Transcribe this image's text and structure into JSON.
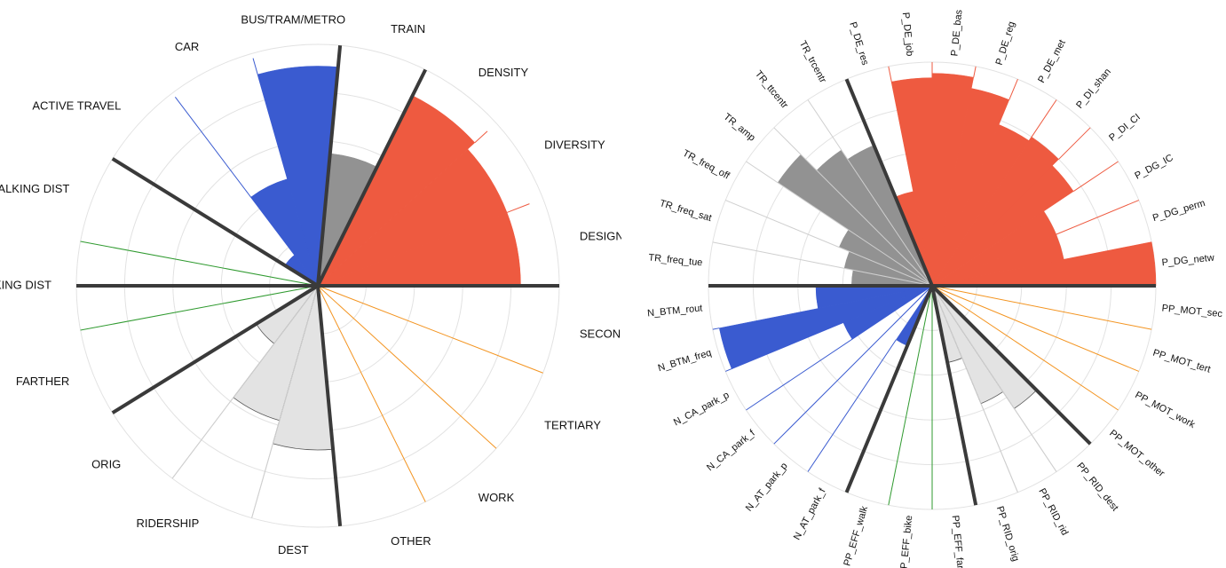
{
  "colors": {
    "background": "#ffffff",
    "grid": "#e2e2e2",
    "separator": "#3a3a3a",
    "blue": "#3a5bd0",
    "gray": "#929292",
    "red": "#ee5a40",
    "green": "#2f9a2f",
    "orange": "#f39420",
    "lightgray": "#e3e3e3",
    "outline": "#555555"
  },
  "chart_data": [
    {
      "type": "polar-bar",
      "rmax": 1,
      "grid": [
        0.2,
        0.4,
        0.6,
        0.8,
        1.0
      ],
      "center_label": "",
      "sectors": [
        {
          "label": "DESIGN",
          "group": "red",
          "value": 0.84,
          "ref": 0.84
        },
        {
          "label": "DIVERSITY",
          "group": "red",
          "value": 0.84,
          "ref": 0.94
        },
        {
          "label": "DENSITY",
          "group": "red",
          "value": 0.88,
          "ref": 0.95
        },
        {
          "label": "TRAIN",
          "group": "gray",
          "value": 0.55,
          "ref": 0.6
        },
        {
          "label": "BUS/TRAM/METRO",
          "group": "blue",
          "value": 0.91,
          "ref": 0.91
        },
        {
          "label": "CAR",
          "group": "blue",
          "value": 0.46,
          "ref": 0.98
        },
        {
          "label": "ACTIVE TRAVEL",
          "group": "blue",
          "value": 0.16,
          "ref": 0.98
        },
        {
          "label": "WALKING DIST",
          "group": "green",
          "value": 0,
          "ref": 1.0
        },
        {
          "label": "BIKING DIST",
          "group": "green",
          "value": 0,
          "ref": 1.0
        },
        {
          "label": "FARTHER",
          "group": "green",
          "value": 0,
          "ref": 1.0
        },
        {
          "label": "ORIG",
          "group": "lightgray",
          "value": 0.3,
          "ref": 1.0
        },
        {
          "label": "RIDERSHIP",
          "group": "lightgray",
          "value": 0.58,
          "ref": 1.0
        },
        {
          "label": "DEST",
          "group": "lightgray",
          "value": 0.68,
          "ref": 1.0
        },
        {
          "label": "OTHER",
          "group": "orange",
          "value": 0,
          "ref": 1.0
        },
        {
          "label": "WORK",
          "group": "orange",
          "value": 0,
          "ref": 1.0
        },
        {
          "label": "TERTIARY",
          "group": "orange",
          "value": 0,
          "ref": 1.0
        },
        {
          "label": "SECONDARY",
          "group": "orange",
          "value": 0,
          "ref": 1.0
        }
      ],
      "separators_after": [
        2,
        3,
        6,
        9,
        12
      ]
    },
    {
      "type": "polar-bar",
      "rmax": 1,
      "grid": [
        0.2,
        0.4,
        0.6,
        0.8,
        1.0
      ],
      "sectors": [
        {
          "label": "P_DG_netw",
          "group": "red",
          "value": 1.0,
          "ref": 1.0
        },
        {
          "label": "P_DG_perm",
          "group": "red",
          "value": 0.6,
          "ref": 1.0
        },
        {
          "label": "P_DG_IC",
          "group": "red",
          "value": 0.6,
          "ref": 1.0
        },
        {
          "label": "P_DI_CI",
          "group": "red",
          "value": 0.76,
          "ref": 1.0
        },
        {
          "label": "P_DI_shan",
          "group": "red",
          "value": 0.8,
          "ref": 1.0
        },
        {
          "label": "P_DE_met",
          "group": "red",
          "value": 0.78,
          "ref": 1.0
        },
        {
          "label": "P_DE_reg",
          "group": "red",
          "value": 0.9,
          "ref": 1.0
        },
        {
          "label": "P_DE_bas",
          "group": "red",
          "value": 0.95,
          "ref": 1.0
        },
        {
          "label": "P_DE_job",
          "group": "red",
          "value": 0.93,
          "ref": 1.0
        },
        {
          "label": "P_DE_res",
          "group": "red",
          "value": 0.43,
          "ref": 1.0
        },
        {
          "label": "TR_trcentr",
          "group": "gray",
          "value": 0.68,
          "ref": 1.0
        },
        {
          "label": "TR_ttcentr",
          "group": "gray",
          "value": 0.73,
          "ref": 1.0
        },
        {
          "label": "TR_amp",
          "group": "gray",
          "value": 0.83,
          "ref": 1.0
        },
        {
          "label": "TR_freq_off",
          "group": "gray",
          "value": 0.45,
          "ref": 1.0
        },
        {
          "label": "TR_freq_sat",
          "group": "gray",
          "value": 0.4,
          "ref": 1.0
        },
        {
          "label": "TR_freq_tue",
          "group": "gray",
          "value": 0.36,
          "ref": 1.0
        },
        {
          "label": "N_BTM_rout",
          "group": "blue",
          "value": 0.52,
          "ref": 1.0
        },
        {
          "label": "N_BTM_freq",
          "group": "blue",
          "value": 0.97,
          "ref": 1.0
        },
        {
          "label": "N_CA_park_p",
          "group": "blue",
          "value": 0.43,
          "ref": 1.0
        },
        {
          "label": "N_CA_park_f",
          "group": "blue",
          "value": 0,
          "ref": 1.0
        },
        {
          "label": "N_AT_park_p",
          "group": "blue",
          "value": 0,
          "ref": 1.0
        },
        {
          "label": "N_AT_park_f",
          "group": "blue",
          "value": 0.29,
          "ref": 1.0
        },
        {
          "label": "PP_EFF_walk",
          "group": "green",
          "value": 0,
          "ref": 1.0
        },
        {
          "label": "PP_EFF_bike",
          "group": "green",
          "value": 0,
          "ref": 1.0
        },
        {
          "label": "PP_EFF_far",
          "group": "green",
          "value": 0,
          "ref": 1.0
        },
        {
          "label": "PP_RID_orig",
          "group": "lightgray",
          "value": 0.35,
          "ref": 1.0
        },
        {
          "label": "PP_RID_rid",
          "group": "lightgray",
          "value": 0.57,
          "ref": 1.0
        },
        {
          "label": "PP_RID_dest",
          "group": "lightgray",
          "value": 0.66,
          "ref": 1.0
        },
        {
          "label": "PP_MOT_other",
          "group": "orange",
          "value": 0,
          "ref": 1.0
        },
        {
          "label": "PP_MOT_work",
          "group": "orange",
          "value": 0,
          "ref": 1.0
        },
        {
          "label": "PP_MOT_tert",
          "group": "orange",
          "value": 0,
          "ref": 1.0
        },
        {
          "label": "PP_MOT_sec",
          "group": "orange",
          "value": 0,
          "ref": 1.0
        }
      ],
      "separators_after": [
        9,
        15,
        21,
        24,
        27
      ]
    }
  ]
}
